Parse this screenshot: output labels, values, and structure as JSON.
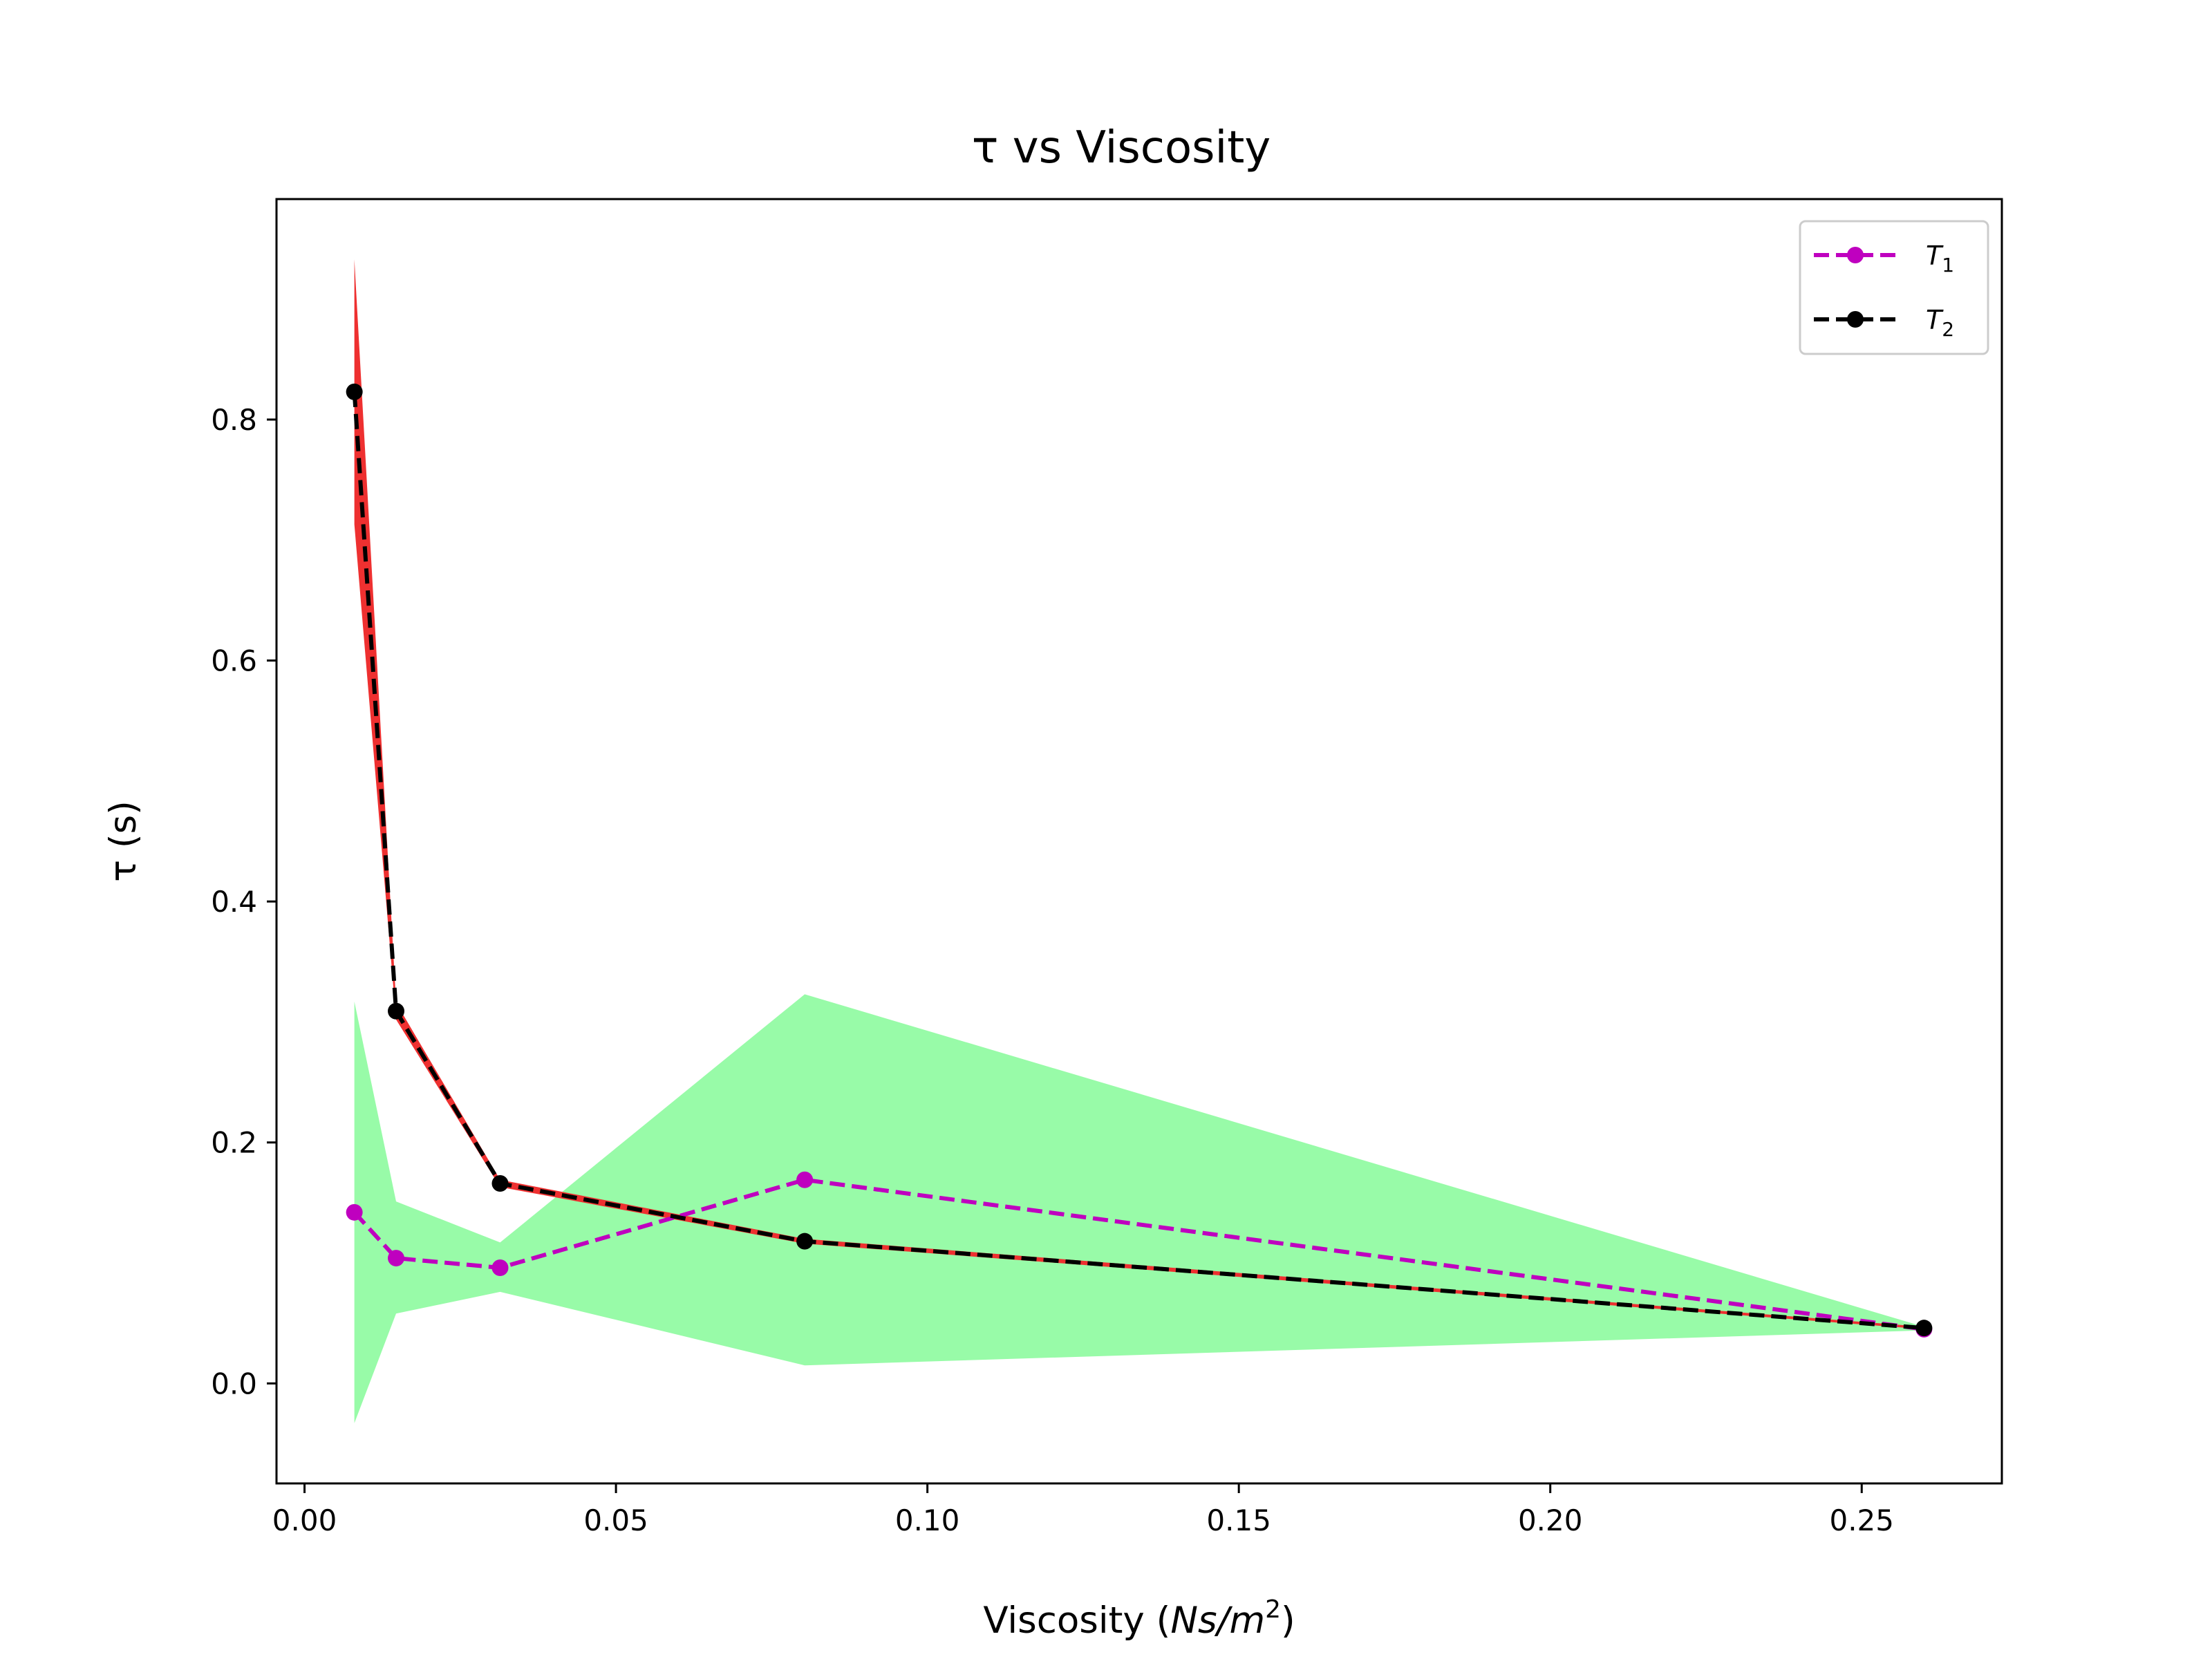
{
  "chart_data": {
    "type": "line",
    "title": "τ vs Viscosity",
    "xlabel": "Viscosity (Ns/m²)",
    "xlabel_parts": {
      "prefix": "Viscosity (",
      "italic": "Ns/m",
      "sup": "2",
      "suffix": ")"
    },
    "ylabel": "τ (s)",
    "xlim": [
      -0.0045,
      0.2725
    ],
    "ylim": [
      -0.083,
      0.983
    ],
    "xticks": [
      0.0,
      0.05,
      0.1,
      0.15,
      0.2,
      0.25
    ],
    "xtick_labels": [
      "0.00",
      "0.05",
      "0.10",
      "0.15",
      "0.20",
      "0.25"
    ],
    "yticks": [
      0.0,
      0.2,
      0.4,
      0.6,
      0.8
    ],
    "ytick_labels": [
      "0.0",
      "0.2",
      "0.4",
      "0.6",
      "0.8"
    ],
    "grid": false,
    "legend_position": "top-right",
    "x": [
      0.008,
      0.0147,
      0.0314,
      0.0803,
      0.26
    ],
    "series": [
      {
        "name": "T1",
        "name_main": "T",
        "name_sub": "1",
        "color": "#bf00bf",
        "line_style": "dashed",
        "marker": "circle",
        "y": [
          0.142,
          0.104,
          0.096,
          0.169,
          0.045
        ],
        "band_lower": [
          -0.033,
          0.058,
          0.076,
          0.015,
          0.044
        ],
        "band_upper": [
          0.317,
          0.151,
          0.117,
          0.323,
          0.047
        ],
        "band_color": "#98fba8"
      },
      {
        "name": "T2",
        "name_main": "T",
        "name_sub": "2",
        "color": "#000000",
        "line_style": "dashed",
        "marker": "circle",
        "y": [
          0.823,
          0.309,
          0.166,
          0.118,
          0.046
        ],
        "band_lower": [
          0.713,
          0.302,
          0.163,
          0.116,
          0.045
        ],
        "band_upper": [
          0.933,
          0.316,
          0.169,
          0.12,
          0.047
        ],
        "band_color": "#ee3030"
      }
    ]
  }
}
